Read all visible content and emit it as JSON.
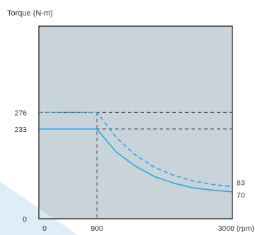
{
  "chart_data": {
    "type": "line",
    "ylabel": "Torque (N-m)",
    "xlabel": "",
    "x_ticks": [
      "0",
      "900",
      "3000 (rpm)"
    ],
    "y_ticks": [
      "0",
      "233",
      "276"
    ],
    "x_range": [
      0,
      3000
    ],
    "y_range": [
      0,
      500
    ],
    "grid": false,
    "series": [
      {
        "style": "dashed",
        "color": "#2aa8e0",
        "x": [
          0,
          900,
          1200,
          1500,
          1800,
          2100,
          2400,
          2700,
          3000
        ],
        "y": [
          276,
          276,
          211,
          165,
          133,
          112,
          98,
          89,
          83
        ]
      },
      {
        "style": "solid",
        "color": "#2aa8e0",
        "x": [
          0,
          900,
          1200,
          1500,
          1800,
          2100,
          2400,
          2700,
          3000
        ],
        "y": [
          233,
          233,
          173,
          136,
          109,
          92,
          80,
          74,
          70
        ]
      }
    ],
    "annotations": [
      {
        "text": "83",
        "x": 3000,
        "y": 83
      },
      {
        "text": "70",
        "x": 3000,
        "y": 70
      }
    ],
    "reference_lines": [
      {
        "type": "horizontal",
        "y": 276,
        "style": "dashed"
      },
      {
        "type": "horizontal",
        "y": 233,
        "style": "dashed"
      },
      {
        "type": "vertical",
        "x": 900,
        "style": "dashed"
      }
    ]
  },
  "colors": {
    "plot_bg": "#c9d3da",
    "frame": "#222222",
    "reference": "#444444",
    "curve": "#2aa8e0"
  }
}
